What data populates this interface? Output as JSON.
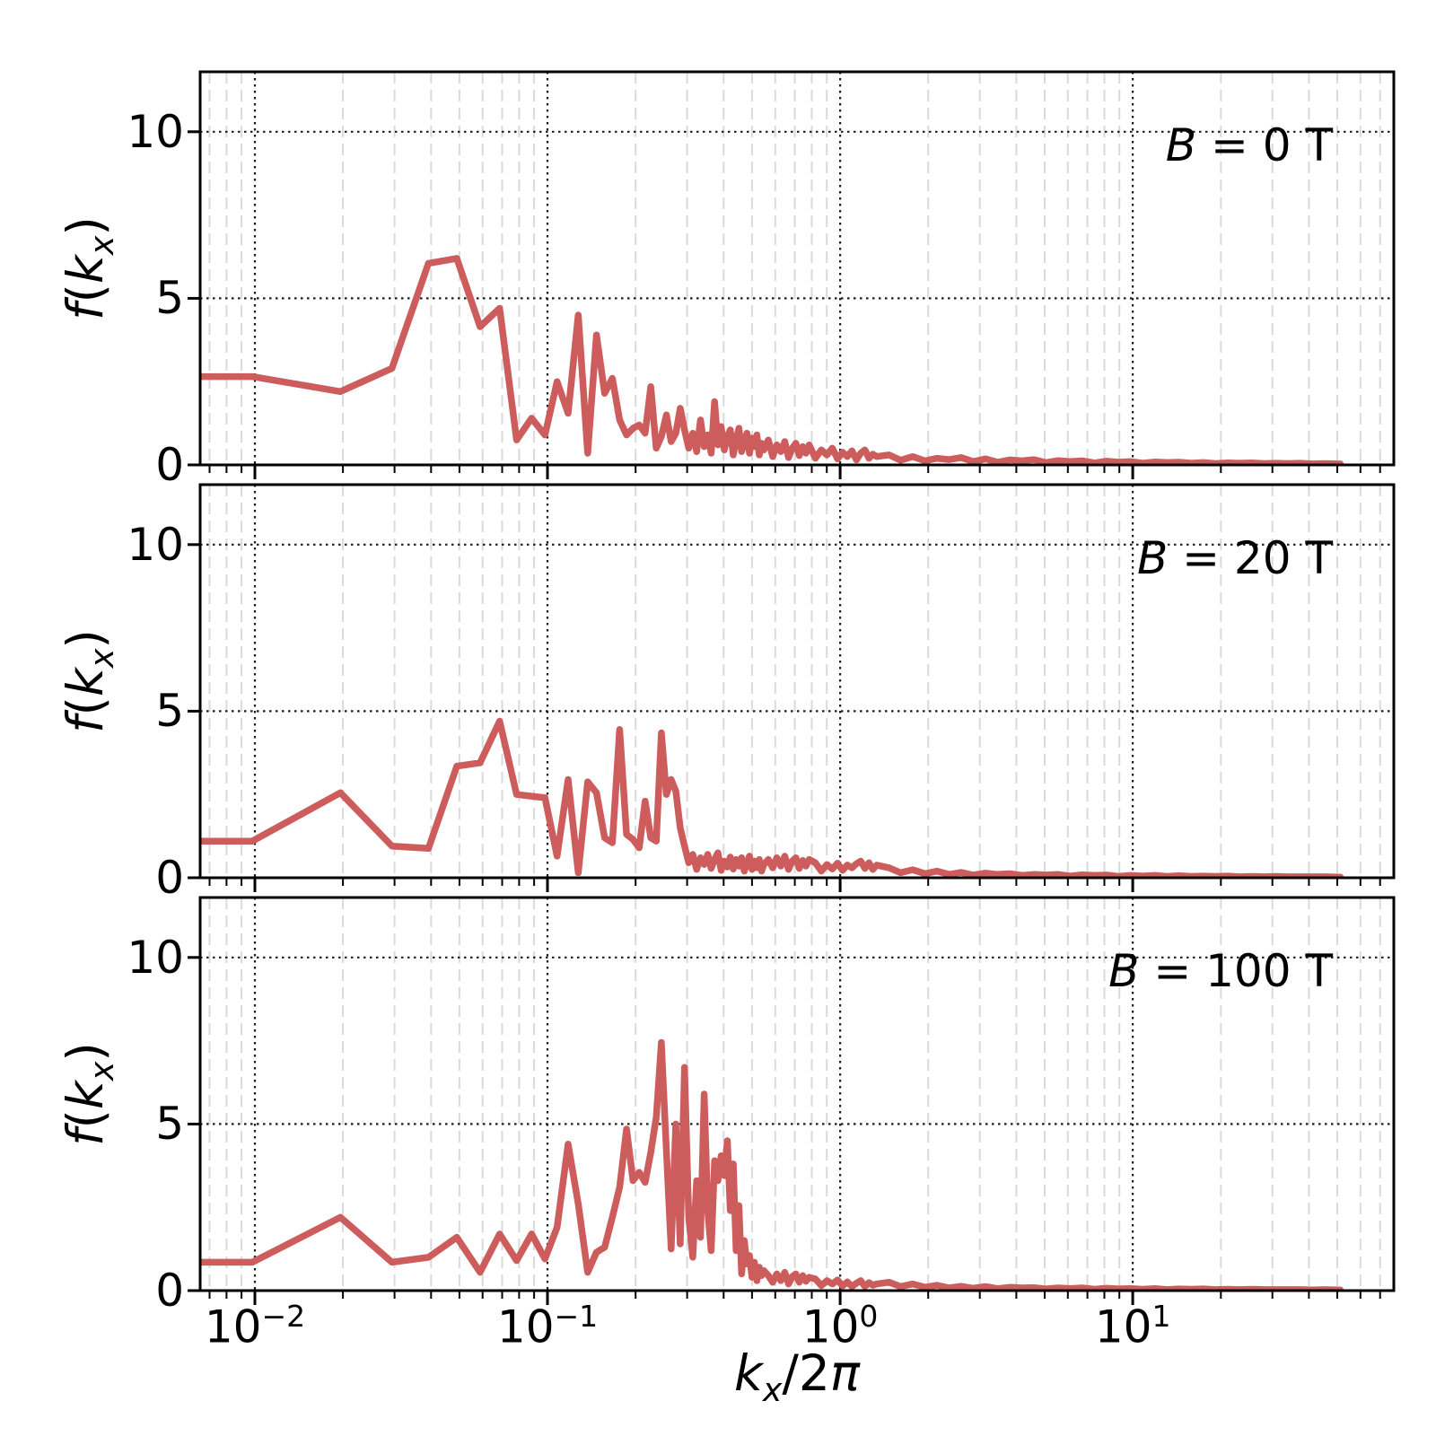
{
  "figure": {
    "background": "#ffffff",
    "colors": {
      "line": "#cd5c5c",
      "spine": "#000000",
      "major_grid": "#1c1c1c",
      "minor_grid": "#dadada",
      "text": "#000000"
    },
    "panel_labels": [
      {
        "symbol": "B",
        "value": "0 T"
      },
      {
        "symbol": "B",
        "value": "20 T"
      },
      {
        "symbol": "B",
        "value": "100 T"
      }
    ],
    "ylabel_parts": {
      "func": "f",
      "open": "(",
      "var": "k",
      "sub": "x",
      "close": ")"
    },
    "xlabel_parts": {
      "var": "k",
      "sub": "x",
      "mid": "/2",
      "pi": "π"
    },
    "x_tick_exponents": [
      -2,
      -1,
      0,
      1
    ],
    "y_tick_labels": [
      "0",
      "5",
      "10"
    ]
  },
  "chart_data": {
    "type": "line",
    "xscale": "log",
    "xlabel": "k_x / 2pi",
    "ylabel": "f(k_x)",
    "xlim": [
      0.0065,
      78
    ],
    "ylim": [
      0,
      11.8
    ],
    "x_major_ticks": [
      0.01,
      0.1,
      1,
      10
    ],
    "y_ticks": [
      0,
      5,
      10
    ],
    "grid": {
      "major": "dotted-black",
      "minor": "dashed-light-vertical"
    },
    "legend_position": "none",
    "line_color": "#cd5c5c",
    "x_shared": [
      0.006,
      0.0098,
      0.0196,
      0.0294,
      0.0392,
      0.049,
      0.0588,
      0.0686,
      0.0784,
      0.0882,
      0.098,
      0.1078,
      0.1176,
      0.1274,
      0.1372,
      0.147,
      0.1568,
      0.1666,
      0.1764,
      0.1862,
      0.196,
      0.2058,
      0.2156,
      0.2254,
      0.2352,
      0.245,
      0.2548,
      0.2646,
      0.2744,
      0.2842,
      0.294,
      0.3038,
      0.3136,
      0.3234,
      0.3332,
      0.343,
      0.3528,
      0.3626,
      0.3724,
      0.3822,
      0.392,
      0.4018,
      0.4116,
      0.4214,
      0.4312,
      0.441,
      0.4508,
      0.4606,
      0.4704,
      0.4802,
      0.49,
      0.4998,
      0.5096,
      0.5194,
      0.5292,
      0.539,
      0.5488,
      0.5684,
      0.588,
      0.6076,
      0.6272,
      0.6468,
      0.6664,
      0.686,
      0.7056,
      0.7252,
      0.7448,
      0.7644,
      0.784,
      0.8232,
      0.8624,
      0.9016,
      0.9408,
      0.98,
      1.0192,
      1.0584,
      1.0976,
      1.1368,
      1.176,
      1.2152,
      1.2544,
      1.2936,
      1.3328,
      1.47,
      1.61,
      1.77,
      1.95,
      2.14,
      2.36,
      2.59,
      2.85,
      3.14,
      3.45,
      3.8,
      4.18,
      4.59,
      5.05,
      5.56,
      6.11,
      6.72,
      7.4,
      8.14,
      8.95,
      9.84,
      10.83,
      11.91,
      13.1,
      14.41,
      15.85,
      17.44,
      19.18,
      21.1,
      23.21,
      25.53,
      28.08,
      30.89,
      33.98,
      37.38,
      41.12,
      45.23,
      49.75,
      51.2
    ],
    "panels": [
      {
        "label": "B = 0 T",
        "values": [
          2.65,
          2.65,
          2.2,
          2.9,
          6.05,
          6.2,
          4.15,
          4.7,
          0.75,
          1.4,
          0.9,
          2.5,
          1.55,
          4.5,
          0.35,
          3.9,
          2.15,
          2.6,
          1.35,
          0.9,
          1.1,
          1.2,
          0.95,
          2.35,
          0.5,
          0.85,
          1.5,
          0.7,
          0.95,
          1.7,
          1.05,
          0.5,
          0.95,
          0.4,
          1.35,
          0.55,
          0.9,
          0.35,
          1.9,
          0.6,
          1.15,
          0.45,
          0.85,
          1.05,
          0.3,
          0.75,
          1.1,
          0.4,
          0.7,
          0.95,
          0.35,
          0.8,
          0.55,
          0.9,
          0.3,
          0.65,
          0.45,
          0.75,
          0.25,
          0.6,
          0.4,
          0.7,
          0.22,
          0.5,
          0.65,
          0.28,
          0.55,
          0.35,
          0.6,
          0.2,
          0.45,
          0.3,
          0.5,
          0.18,
          0.38,
          0.25,
          0.42,
          0.15,
          0.35,
          0.45,
          0.2,
          0.32,
          0.25,
          0.3,
          0.14,
          0.25,
          0.12,
          0.2,
          0.16,
          0.22,
          0.1,
          0.18,
          0.08,
          0.15,
          0.12,
          0.16,
          0.07,
          0.13,
          0.1,
          0.12,
          0.06,
          0.11,
          0.08,
          0.1,
          0.05,
          0.09,
          0.07,
          0.08,
          0.05,
          0.07,
          0.04,
          0.06,
          0.05,
          0.06,
          0.04,
          0.05,
          0.04,
          0.05,
          0.03,
          0.04,
          0.03,
          0.03
        ]
      },
      {
        "label": "B = 20 T",
        "values": [
          1.1,
          1.1,
          2.55,
          0.95,
          0.88,
          3.35,
          3.45,
          4.7,
          2.5,
          2.45,
          2.4,
          0.65,
          2.95,
          0.15,
          2.88,
          2.55,
          1.2,
          1.05,
          4.45,
          1.3,
          1.15,
          0.9,
          2.3,
          1.2,
          1.1,
          4.35,
          2.5,
          2.95,
          2.6,
          1.5,
          0.95,
          0.45,
          0.7,
          0.25,
          0.6,
          0.4,
          0.7,
          0.28,
          0.55,
          0.75,
          0.22,
          0.5,
          0.32,
          0.62,
          0.26,
          0.55,
          0.35,
          0.6,
          0.2,
          0.45,
          0.65,
          0.25,
          0.5,
          0.3,
          0.55,
          0.2,
          0.4,
          0.55,
          0.3,
          0.6,
          0.35,
          0.65,
          0.25,
          0.5,
          0.6,
          0.28,
          0.52,
          0.35,
          0.55,
          0.45,
          0.2,
          0.4,
          0.26,
          0.44,
          0.22,
          0.38,
          0.3,
          0.42,
          0.5,
          0.28,
          0.45,
          0.25,
          0.38,
          0.3,
          0.15,
          0.24,
          0.12,
          0.2,
          0.1,
          0.16,
          0.08,
          0.14,
          0.1,
          0.12,
          0.07,
          0.1,
          0.08,
          0.1,
          0.05,
          0.09,
          0.07,
          0.08,
          0.04,
          0.07,
          0.05,
          0.07,
          0.04,
          0.06,
          0.04,
          0.05,
          0.04,
          0.05,
          0.03,
          0.04,
          0.03,
          0.04,
          0.03,
          0.03,
          0.03,
          0.03,
          0.02,
          0.02
        ]
      },
      {
        "label": "B = 100 T",
        "values": [
          0.85,
          0.85,
          2.2,
          0.85,
          1.0,
          1.6,
          0.55,
          1.7,
          0.9,
          1.7,
          0.95,
          1.9,
          4.4,
          2.6,
          0.55,
          1.15,
          1.3,
          2.2,
          3.1,
          4.85,
          3.3,
          3.55,
          3.25,
          4.15,
          5.2,
          7.45,
          4.2,
          1.25,
          5.0,
          1.4,
          6.7,
          2.2,
          1.0,
          3.3,
          1.6,
          5.9,
          2.4,
          1.2,
          3.9,
          3.3,
          4.05,
          3.45,
          4.5,
          2.4,
          3.8,
          1.2,
          2.55,
          0.5,
          1.5,
          0.8,
          1.05,
          0.4,
          0.85,
          0.3,
          0.7,
          0.45,
          0.6,
          0.45,
          0.25,
          0.5,
          0.3,
          0.55,
          0.2,
          0.42,
          0.5,
          0.25,
          0.45,
          0.28,
          0.4,
          0.35,
          0.15,
          0.3,
          0.2,
          0.32,
          0.14,
          0.26,
          0.12,
          0.22,
          0.3,
          0.12,
          0.24,
          0.16,
          0.2,
          0.25,
          0.12,
          0.2,
          0.1,
          0.16,
          0.08,
          0.13,
          0.07,
          0.12,
          0.06,
          0.1,
          0.08,
          0.09,
          0.05,
          0.08,
          0.06,
          0.08,
          0.04,
          0.07,
          0.05,
          0.06,
          0.04,
          0.06,
          0.03,
          0.05,
          0.04,
          0.05,
          0.03,
          0.04,
          0.03,
          0.04,
          0.03,
          0.03,
          0.03,
          0.03,
          0.02,
          0.03,
          0.02,
          0.02
        ]
      }
    ]
  }
}
